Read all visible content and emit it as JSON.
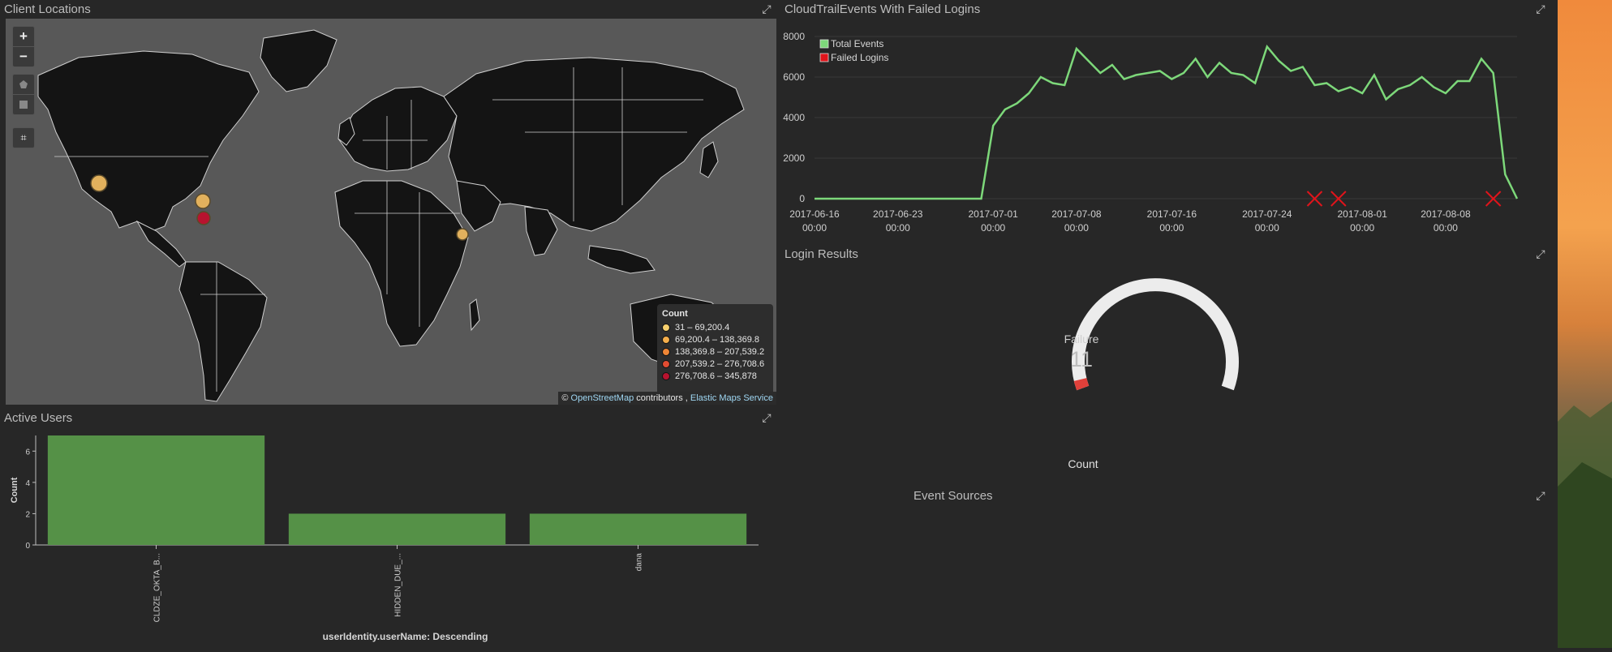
{
  "map_panel": {
    "title": "Client Locations",
    "legend_title": "Count",
    "legend_items": [
      {
        "label": "31 – 69,200.4",
        "color": "#f7d06e"
      },
      {
        "label": "69,200.4 – 138,369.8",
        "color": "#f4ae4b"
      },
      {
        "label": "138,369.8 – 207,539.2",
        "color": "#ef8636"
      },
      {
        "label": "207,539.2 – 276,708.6",
        "color": "#e24c32"
      },
      {
        "label": "276,708.6 – 345,878",
        "color": "#b8132f"
      }
    ],
    "attrib_prefix": "©",
    "attrib_osm": "OpenStreetMap",
    "attrib_mid": "contributors ,",
    "attrib_ems": "Elastic Maps Service",
    "zoom_in": "+",
    "zoom_out": "−",
    "points": [
      {
        "name": "west-us",
        "color": "#e2b15d"
      },
      {
        "name": "northeast-us",
        "color": "#e2b15d"
      },
      {
        "name": "east-us",
        "color": "#b8132f"
      },
      {
        "name": "middle-east",
        "color": "#e2b15d"
      }
    ]
  },
  "line_panel": {
    "title": "CloudTrailEvents With Failed Logins",
    "legend": [
      {
        "label": "Total Events",
        "color": "#7dd87a"
      },
      {
        "label": "Failed Logins",
        "color": "#e0141b"
      }
    ]
  },
  "gauge_panel": {
    "title": "Login Results",
    "label": "Failure",
    "value": "11",
    "axis_label": "Count",
    "fraction": 0.03
  },
  "bar_panel": {
    "title": "Active Users",
    "xlabel": "userIdentity.userName: Descending"
  },
  "event_sources_panel": {
    "title": "Event Sources"
  },
  "chart_data": [
    {
      "type": "line",
      "title": "CloudTrailEvents With Failed Logins",
      "x_ticks": [
        "2017-06-16 00:00",
        "2017-06-23 00:00",
        "2017-07-01 00:00",
        "2017-07-08 00:00",
        "2017-07-16 00:00",
        "2017-07-24 00:00",
        "2017-08-01 00:00",
        "2017-08-08 00:00"
      ],
      "y_ticks": [
        0,
        2000,
        4000,
        6000,
        8000
      ],
      "ylim": [
        0,
        8000
      ],
      "xlim": [
        "2017-06-16",
        "2017-08-14"
      ],
      "series": [
        {
          "name": "Total Events",
          "color": "#7dd87a",
          "points": [
            [
              "2017-06-16",
              0
            ],
            [
              "2017-06-20",
              0
            ],
            [
              "2017-06-25",
              0
            ],
            [
              "2017-06-30",
              0
            ],
            [
              "2017-07-01",
              3600
            ],
            [
              "2017-07-02",
              4400
            ],
            [
              "2017-07-03",
              4700
            ],
            [
              "2017-07-04",
              5200
            ],
            [
              "2017-07-05",
              6000
            ],
            [
              "2017-07-06",
              5700
            ],
            [
              "2017-07-07",
              5600
            ],
            [
              "2017-07-08",
              7400
            ],
            [
              "2017-07-09",
              6800
            ],
            [
              "2017-07-10",
              6200
            ],
            [
              "2017-07-11",
              6600
            ],
            [
              "2017-07-12",
              5900
            ],
            [
              "2017-07-13",
              6100
            ],
            [
              "2017-07-14",
              6200
            ],
            [
              "2017-07-15",
              6300
            ],
            [
              "2017-07-16",
              5900
            ],
            [
              "2017-07-17",
              6200
            ],
            [
              "2017-07-18",
              6900
            ],
            [
              "2017-07-19",
              6000
            ],
            [
              "2017-07-20",
              6700
            ],
            [
              "2017-07-21",
              6200
            ],
            [
              "2017-07-22",
              6100
            ],
            [
              "2017-07-23",
              5700
            ],
            [
              "2017-07-24",
              7500
            ],
            [
              "2017-07-25",
              6800
            ],
            [
              "2017-07-26",
              6300
            ],
            [
              "2017-07-27",
              6500
            ],
            [
              "2017-07-28",
              5600
            ],
            [
              "2017-07-29",
              5700
            ],
            [
              "2017-07-30",
              5300
            ],
            [
              "2017-07-31",
              5500
            ],
            [
              "2017-08-01",
              5200
            ],
            [
              "2017-08-02",
              6100
            ],
            [
              "2017-08-03",
              4900
            ],
            [
              "2017-08-04",
              5400
            ],
            [
              "2017-08-05",
              5600
            ],
            [
              "2017-08-06",
              6000
            ],
            [
              "2017-08-07",
              5500
            ],
            [
              "2017-08-08",
              5200
            ],
            [
              "2017-08-09",
              5800
            ]
          ]
        },
        {
          "name": "Failed Logins",
          "color": "#e0141b",
          "points": [
            [
              "2017-07-28",
              0
            ],
            [
              "2017-07-30",
              0
            ],
            [
              "2017-08-12",
              0
            ]
          ]
        }
      ]
    },
    {
      "type": "bar",
      "title": "Active Users",
      "categories": [
        "CLDZE_OKTA_B...",
        "HIDDEN_DUE_...",
        "dana"
      ],
      "values": [
        7,
        2,
        2
      ],
      "ylabel": "Count",
      "xlabel": "userIdentity.userName: Descending",
      "y_ticks": [
        0,
        2,
        4,
        6
      ],
      "ylim": [
        0,
        7
      ],
      "color": "#559147"
    }
  ]
}
